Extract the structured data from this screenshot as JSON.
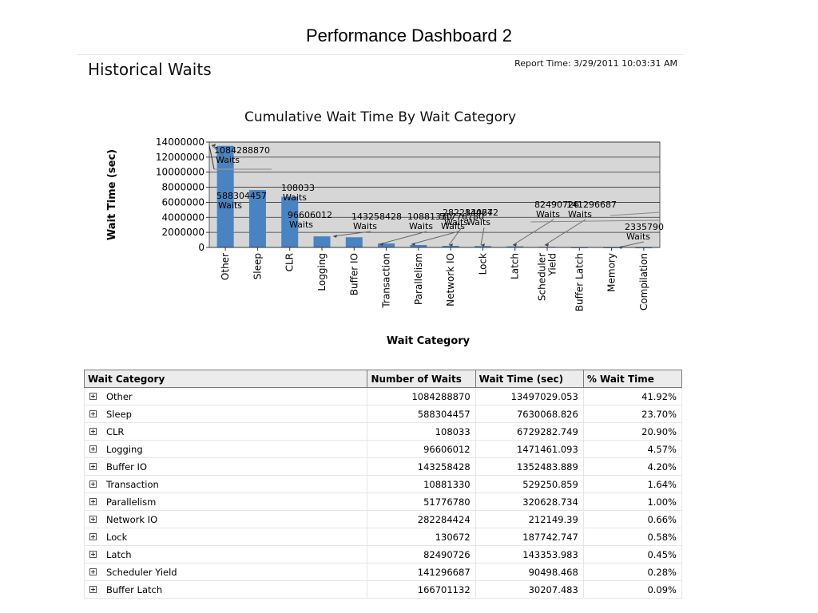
{
  "slide": {
    "title": "Performance Dashboard 2"
  },
  "report": {
    "section_title": "Historical Waits",
    "report_time": "Report Time: 3/29/2011 10:03:31 AM"
  },
  "chart_data": {
    "type": "bar",
    "title": "Cumulative Wait Time By Wait Category",
    "xlabel": "Wait Category",
    "ylabel": "Wait Time (sec)",
    "ylim": [
      0,
      14000000
    ],
    "yticks": [
      0,
      2000000,
      4000000,
      6000000,
      8000000,
      10000000,
      12000000,
      14000000
    ],
    "grid": true,
    "categories": [
      "Other",
      "Sleep",
      "CLR",
      "Logging",
      "Buffer IO",
      "Transaction",
      "Parallelism",
      "Network IO",
      "Lock",
      "Latch",
      "Scheduler Yield",
      "Buffer Latch",
      "Memory",
      "Compilation"
    ],
    "category_lines": [
      [
        "Other"
      ],
      [
        "Sleep"
      ],
      [
        "CLR"
      ],
      [
        "Logging"
      ],
      [
        "Buffer IO"
      ],
      [
        "Transaction"
      ],
      [
        "Parallelism"
      ],
      [
        "Network IO"
      ],
      [
        "Lock"
      ],
      [
        "Latch"
      ],
      [
        "Scheduler",
        "Yield"
      ],
      [
        "Buffer Latch"
      ],
      [
        "Memory"
      ],
      [
        "Compilation"
      ]
    ],
    "values": [
      13497029.053,
      7630068.826,
      6729282.749,
      1471461.093,
      1352483.889,
      529250.859,
      320628.734,
      212149.39,
      187742.747,
      143353.983,
      90498.468,
      30207.483,
      25000,
      12000
    ],
    "data_labels": [
      [
        "1084288870",
        "Waits"
      ],
      [
        "588304457",
        "Waits"
      ],
      [
        "108033",
        "Waits"
      ],
      [
        "96606012",
        "Waits"
      ],
      [
        "143258428",
        "Waits"
      ],
      [
        "10881330",
        "Waits"
      ],
      [
        "51776780",
        "Waits"
      ],
      [
        "282284424",
        "Waits"
      ],
      [
        "130672",
        "Waits"
      ],
      [
        "82490726",
        "Waits"
      ],
      [
        "141296687",
        "Waits"
      ],
      [
        "",
        ""
      ],
      [
        "2335790",
        "Waits"
      ],
      [
        "",
        ""
      ]
    ]
  },
  "table": {
    "headers": [
      "Wait Category",
      "Number of Waits",
      "Wait Time (sec)",
      "% Wait Time"
    ],
    "rows": [
      {
        "category": "Other",
        "waits": "1084288870",
        "time": "13497029.053",
        "pct": "41.92%"
      },
      {
        "category": "Sleep",
        "waits": "588304457",
        "time": "7630068.826",
        "pct": "23.70%"
      },
      {
        "category": "CLR",
        "waits": "108033",
        "time": "6729282.749",
        "pct": "20.90%"
      },
      {
        "category": "Logging",
        "waits": "96606012",
        "time": "1471461.093",
        "pct": "4.57%"
      },
      {
        "category": "Buffer IO",
        "waits": "143258428",
        "time": "1352483.889",
        "pct": "4.20%"
      },
      {
        "category": "Transaction",
        "waits": "10881330",
        "time": "529250.859",
        "pct": "1.64%"
      },
      {
        "category": "Parallelism",
        "waits": "51776780",
        "time": "320628.734",
        "pct": "1.00%"
      },
      {
        "category": "Network IO",
        "waits": "282284424",
        "time": "212149.39",
        "pct": "0.66%"
      },
      {
        "category": "Lock",
        "waits": "130672",
        "time": "187742.747",
        "pct": "0.58%"
      },
      {
        "category": "Latch",
        "waits": "82490726",
        "time": "143353.983",
        "pct": "0.45%"
      },
      {
        "category": "Scheduler Yield",
        "waits": "141296687",
        "time": "90498.468",
        "pct": "0.28%"
      },
      {
        "category": "Buffer Latch",
        "waits": "166701132",
        "time": "30207.483",
        "pct": "0.09%"
      }
    ]
  },
  "colors": {
    "bar": "#4a83c1",
    "plot_bg": "#d6d6d6",
    "header_bg": "#ececec"
  }
}
